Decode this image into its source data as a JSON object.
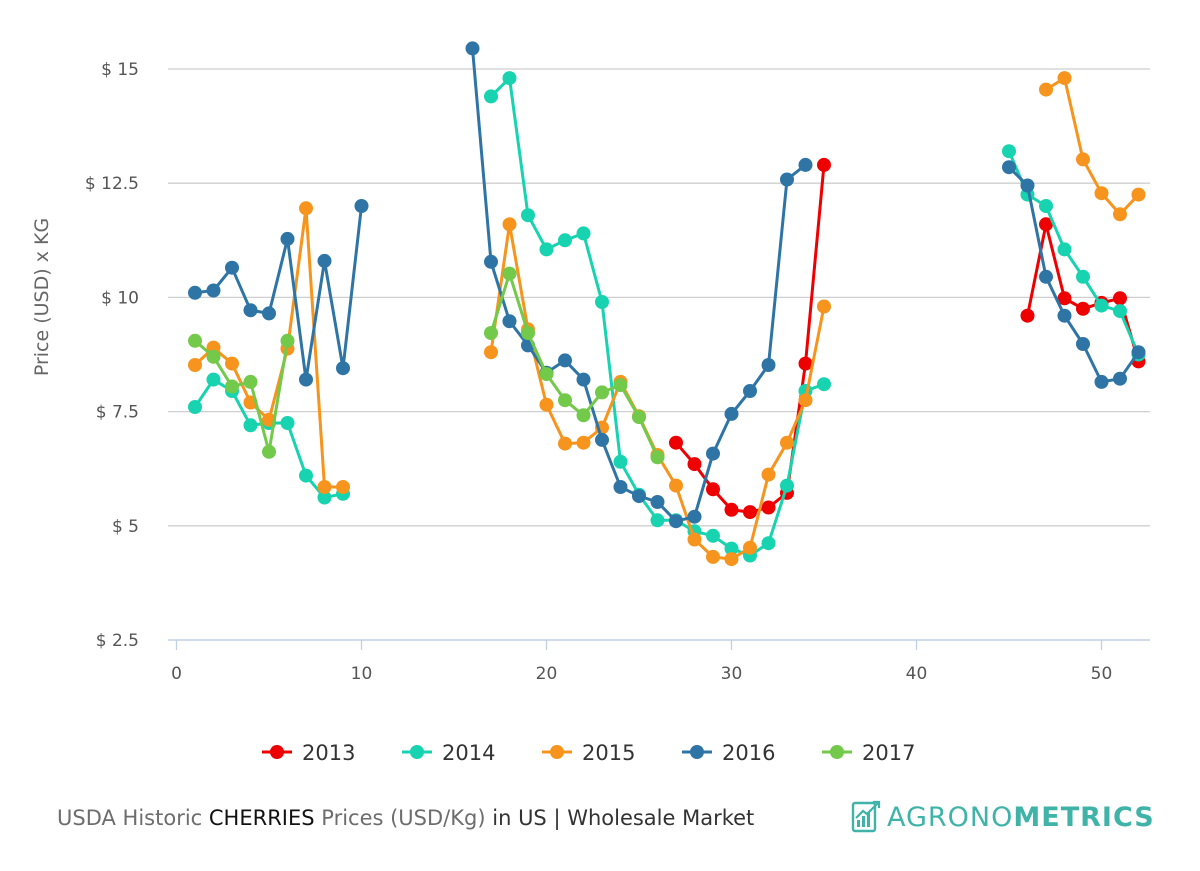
{
  "chart_data": {
    "type": "line",
    "ylabel": "Price (USD) x KG",
    "xlabel": "",
    "xlim": [
      0,
      52
    ],
    "ylim": [
      2.5,
      15.5
    ],
    "x_ticks": [
      0,
      10,
      20,
      30,
      40,
      50
    ],
    "y_ticks": [
      2.5,
      5,
      7.5,
      10,
      12.5,
      15
    ],
    "y_tick_labels": [
      "$ 2.5",
      "$ 5",
      "$ 7.5",
      "$ 10",
      "$ 12.5",
      "$ 15"
    ],
    "grid": true,
    "legend_position": "bottom",
    "series": [
      {
        "name": "2013",
        "color": "#ee0000",
        "points": [
          [
            27,
            6.82
          ],
          [
            28,
            6.35
          ],
          [
            29,
            5.8
          ],
          [
            30,
            5.35
          ],
          [
            31,
            5.3
          ],
          [
            32,
            5.4
          ],
          [
            33,
            5.72
          ],
          [
            34,
            8.55
          ],
          [
            35,
            12.9
          ],
          [
            46,
            9.6
          ],
          [
            47,
            11.6
          ],
          [
            48,
            9.98
          ],
          [
            49,
            9.75
          ],
          [
            50,
            9.88
          ],
          [
            51,
            9.98
          ],
          [
            52,
            8.6
          ]
        ]
      },
      {
        "name": "2014",
        "color": "#17d3b0",
        "points": [
          [
            1,
            7.6
          ],
          [
            2,
            8.2
          ],
          [
            3,
            7.95
          ],
          [
            4,
            7.2
          ],
          [
            5,
            7.25
          ],
          [
            6,
            7.25
          ],
          [
            7,
            6.1
          ],
          [
            8,
            5.62
          ],
          [
            9,
            5.7
          ],
          [
            17,
            14.4
          ],
          [
            18,
            14.8
          ],
          [
            19,
            11.8
          ],
          [
            20,
            11.05
          ],
          [
            21,
            11.25
          ],
          [
            22,
            11.4
          ],
          [
            23,
            9.9
          ],
          [
            24,
            6.4
          ],
          [
            25,
            5.68
          ],
          [
            26,
            5.12
          ],
          [
            27,
            5.12
          ],
          [
            28,
            4.88
          ],
          [
            29,
            4.78
          ],
          [
            30,
            4.5
          ],
          [
            31,
            4.35
          ],
          [
            32,
            4.62
          ],
          [
            33,
            5.88
          ],
          [
            34,
            7.95
          ],
          [
            35,
            8.1
          ],
          [
            45,
            13.2
          ],
          [
            46,
            12.25
          ],
          [
            47,
            12.0
          ],
          [
            48,
            11.05
          ],
          [
            49,
            10.45
          ],
          [
            50,
            9.82
          ],
          [
            51,
            9.7
          ],
          [
            52,
            8.75
          ]
        ]
      },
      {
        "name": "2015",
        "color": "#f7941d",
        "points": [
          [
            1,
            8.52
          ],
          [
            2,
            8.9
          ],
          [
            3,
            8.55
          ],
          [
            4,
            7.7
          ],
          [
            5,
            7.32
          ],
          [
            6,
            8.88
          ],
          [
            7,
            11.95
          ],
          [
            8,
            5.85
          ],
          [
            9,
            5.85
          ],
          [
            17,
            8.8
          ],
          [
            18,
            11.6
          ],
          [
            19,
            9.3
          ],
          [
            20,
            7.65
          ],
          [
            21,
            6.8
          ],
          [
            22,
            6.82
          ],
          [
            23,
            7.15
          ],
          [
            24,
            8.15
          ],
          [
            25,
            7.4
          ],
          [
            26,
            6.55
          ],
          [
            27,
            5.88
          ],
          [
            28,
            4.7
          ],
          [
            29,
            4.32
          ],
          [
            30,
            4.27
          ],
          [
            31,
            4.52
          ],
          [
            32,
            6.12
          ],
          [
            33,
            6.82
          ],
          [
            34,
            7.75
          ],
          [
            35,
            9.8
          ],
          [
            47,
            14.55
          ],
          [
            48,
            14.8
          ],
          [
            49,
            13.02
          ],
          [
            50,
            12.28
          ],
          [
            51,
            11.82
          ],
          [
            52,
            12.25
          ]
        ]
      },
      {
        "name": "2016",
        "color": "#2e75a6",
        "points": [
          [
            1,
            10.1
          ],
          [
            2,
            10.15
          ],
          [
            3,
            10.65
          ],
          [
            4,
            9.72
          ],
          [
            5,
            9.65
          ],
          [
            6,
            11.28
          ],
          [
            7,
            8.2
          ],
          [
            8,
            10.8
          ],
          [
            9,
            8.45
          ],
          [
            10,
            12.0
          ],
          [
            16,
            15.45
          ],
          [
            17,
            10.78
          ],
          [
            18,
            9.48
          ],
          [
            19,
            8.95
          ],
          [
            20,
            8.35
          ],
          [
            21,
            8.62
          ],
          [
            22,
            8.2
          ],
          [
            23,
            6.88
          ],
          [
            24,
            5.85
          ],
          [
            25,
            5.65
          ],
          [
            26,
            5.52
          ],
          [
            27,
            5.1
          ],
          [
            28,
            5.2
          ],
          [
            29,
            6.58
          ],
          [
            30,
            7.45
          ],
          [
            31,
            7.95
          ],
          [
            32,
            8.52
          ],
          [
            33,
            12.58
          ],
          [
            34,
            12.9
          ],
          [
            45,
            12.85
          ],
          [
            46,
            12.45
          ],
          [
            47,
            10.45
          ],
          [
            48,
            9.6
          ],
          [
            49,
            8.98
          ],
          [
            50,
            8.15
          ],
          [
            51,
            8.22
          ],
          [
            52,
            8.8
          ]
        ]
      },
      {
        "name": "2017",
        "color": "#72c94a",
        "points": [
          [
            1,
            9.05
          ],
          [
            2,
            8.7
          ],
          [
            3,
            8.05
          ],
          [
            4,
            8.15
          ],
          [
            5,
            6.62
          ],
          [
            6,
            9.05
          ],
          [
            17,
            9.22
          ],
          [
            18,
            10.52
          ],
          [
            19,
            9.22
          ],
          [
            20,
            8.32
          ],
          [
            21,
            7.75
          ],
          [
            22,
            7.42
          ],
          [
            23,
            7.92
          ],
          [
            24,
            8.08
          ],
          [
            25,
            7.38
          ],
          [
            26,
            6.5
          ]
        ]
      }
    ]
  },
  "footer": {
    "part1": "USDA Historic ",
    "product": "CHERRIES",
    "part2": " Prices (USD/Kg) ",
    "in": "in",
    "part3": " US | Wholesale Market"
  },
  "logo": {
    "icon": "bar-chart-document-icon",
    "text_light": "AGRONO",
    "text_bold": "METRICS"
  }
}
